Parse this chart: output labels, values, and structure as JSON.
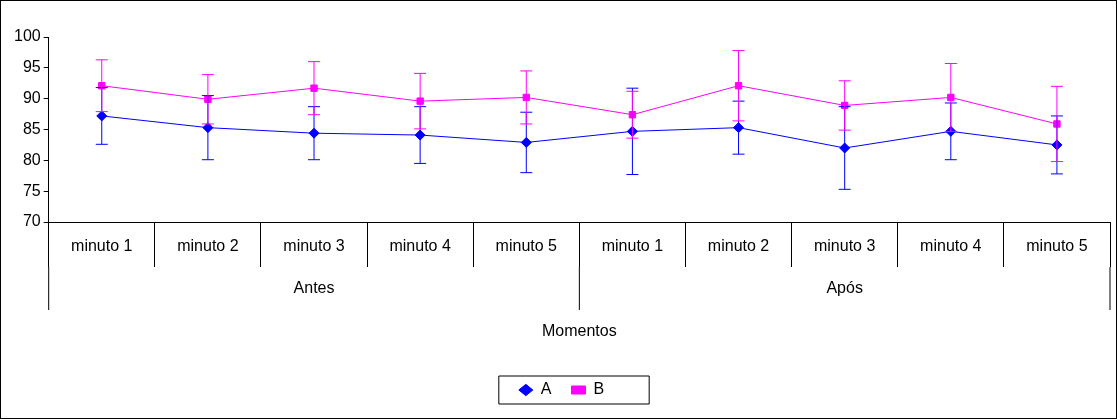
{
  "chart_data": {
    "type": "line",
    "xlabel": "Momentos",
    "categories": [
      "minuto 1",
      "minuto 2",
      "minuto 3",
      "minuto 4",
      "minuto 5",
      "minuto 1",
      "minuto 2",
      "minuto 3",
      "minuto 4",
      "minuto 5"
    ],
    "annotations": [
      "Antes",
      "Após"
    ],
    "ylim": [
      70,
      100
    ],
    "yticks": [
      70,
      75,
      80,
      85,
      90,
      95,
      100
    ],
    "grid": false,
    "legend": "bottom",
    "series": [
      {
        "name": "A",
        "color": "#0000ff",
        "marker": "diamond",
        "values": [
          87.2,
          85.3,
          84.4,
          84.1,
          82.9,
          84.7,
          85.3,
          82.0,
          84.7,
          82.5
        ],
        "errors": [
          4.6,
          5.2,
          4.3,
          4.6,
          4.9,
          7.0,
          4.3,
          6.7,
          4.6,
          4.7
        ]
      },
      {
        "name": "B",
        "color": "#ff00ff",
        "marker": "square",
        "values": [
          92.1,
          89.9,
          91.7,
          89.6,
          90.2,
          87.4,
          92.1,
          88.9,
          90.2,
          85.9
        ],
        "errors": [
          4.2,
          4.0,
          4.3,
          4.5,
          4.3,
          3.8,
          5.7,
          4.0,
          5.5,
          6.1
        ]
      }
    ]
  }
}
